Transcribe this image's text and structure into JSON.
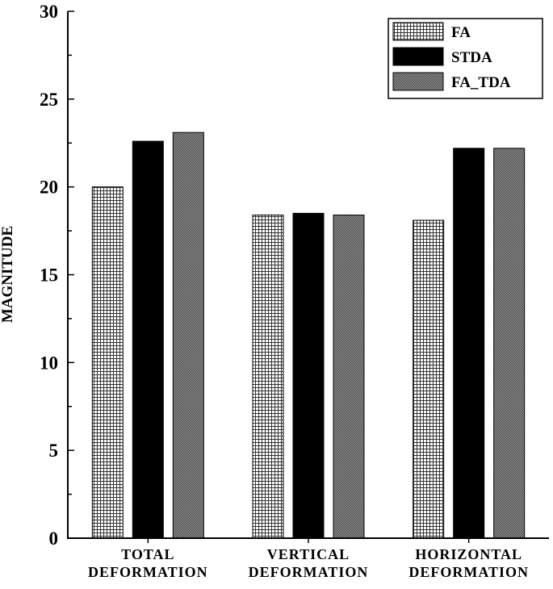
{
  "chart_data": {
    "type": "bar",
    "categories": [
      [
        "TOTAL",
        "DEFORMATION"
      ],
      [
        "VERTICAL",
        "DEFORMATION"
      ],
      [
        "HORIZONTAL",
        "DEFORMATION"
      ]
    ],
    "series": [
      {
        "name": "FA",
        "values": [
          20.0,
          18.4,
          18.1
        ],
        "pattern": "grid",
        "color": "#000000"
      },
      {
        "name": "STDA",
        "values": [
          22.6,
          18.5,
          22.2
        ],
        "pattern": "solid",
        "color": "#000000"
      },
      {
        "name": "FA_TDA",
        "values": [
          23.1,
          18.4,
          22.2
        ],
        "pattern": "dots",
        "color": "#000000"
      }
    ],
    "title": "",
    "xlabel": "",
    "ylabel": "MAGNITUDE",
    "ylim": [
      0,
      30
    ],
    "yticks": [
      0,
      5,
      10,
      15,
      20,
      25,
      30
    ],
    "grid": false,
    "legend_position": "top-right"
  }
}
